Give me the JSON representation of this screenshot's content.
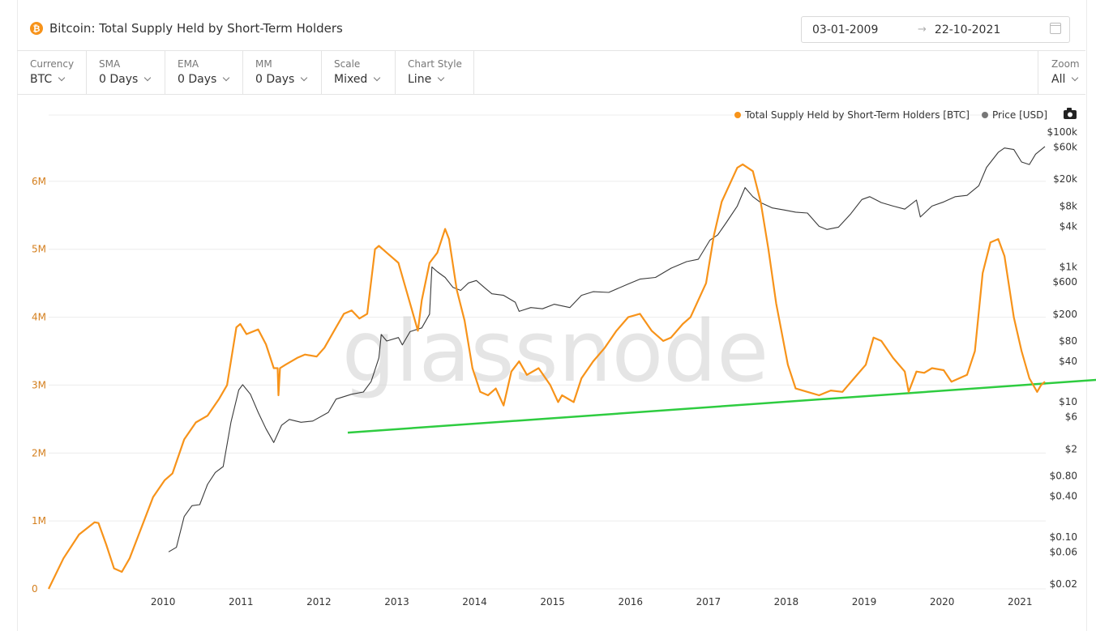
{
  "header": {
    "coin_symbol": "₿",
    "title": "Bitcoin: Total Supply Held by Short-Term Holders",
    "date_from": "03-01-2009",
    "date_arrow": "→",
    "date_to": "22-10-2021"
  },
  "toolbar": [
    {
      "label": "Currency",
      "value": "BTC"
    },
    {
      "label": "SMA",
      "value": "0 Days"
    },
    {
      "label": "EMA",
      "value": "0 Days"
    },
    {
      "label": "MM",
      "value": "0 Days"
    },
    {
      "label": "Scale",
      "value": "Mixed"
    },
    {
      "label": "Chart Style",
      "value": "Line"
    }
  ],
  "zoom": {
    "label": "Zoom",
    "value": "All"
  },
  "colors": {
    "supply": "#f7931a",
    "price": "#3a3a3a",
    "trend": "#2ecc40",
    "left_axis": "#d47f1e"
  },
  "chart_data": {
    "type": "line",
    "title": "Bitcoin: Total Supply Held by Short-Term Holders",
    "watermark": "glassnode",
    "legend": [
      {
        "name": "Total Supply Held by Short-Term Holders [BTC]",
        "color": "#f7931a"
      },
      {
        "name": "Price [USD]",
        "color": "#777777"
      }
    ],
    "x_ticks": [
      "2010",
      "2011",
      "2012",
      "2013",
      "2014",
      "2015",
      "2016",
      "2017",
      "2018",
      "2019",
      "2020",
      "2021"
    ],
    "x_tick_values": [
      2010,
      2011,
      2012,
      2013,
      2014,
      2015,
      2016,
      2017,
      2018,
      2019,
      2020,
      2021
    ],
    "xlim": [
      2009.01,
      2021.81
    ],
    "y_left": {
      "ticks": [
        "0",
        "1M",
        "2M",
        "3M",
        "4M",
        "5M",
        "6M"
      ],
      "tick_values": [
        0,
        1000000,
        2000000,
        3000000,
        4000000,
        5000000,
        6000000
      ],
      "ylim": [
        0,
        7000000
      ]
    },
    "y_right": {
      "scale": "log",
      "ticks": [
        "$0.02",
        "$0.06",
        "$0.10",
        "$0.40",
        "$0.80",
        "$2",
        "$6",
        "$10",
        "$40",
        "$80",
        "$200",
        "$600",
        "$1k",
        "$4k",
        "$8k",
        "$20k",
        "$60k",
        "$100k"
      ],
      "tick_values": [
        0.02,
        0.06,
        0.1,
        0.4,
        0.8,
        2,
        6,
        10,
        40,
        80,
        200,
        600,
        1000,
        4000,
        8000,
        20000,
        60000,
        100000
      ],
      "ylim": [
        0.02,
        100000
      ]
    },
    "series": [
      {
        "name": "Total Supply Held by Short-Term Holders [BTC]",
        "axis": "left",
        "x": [
          2009.01,
          2009.2,
          2009.4,
          2009.6,
          2009.65,
          2009.75,
          2009.85,
          2009.95,
          2010.05,
          2010.2,
          2010.35,
          2010.5,
          2010.6,
          2010.75,
          2010.9,
          2011.05,
          2011.2,
          2011.3,
          2011.42,
          2011.47,
          2011.55,
          2011.7,
          2011.8,
          2011.9,
          2011.95,
          2011.96,
          2011.98,
          2012.05,
          2012.2,
          2012.3,
          2012.45,
          2012.55,
          2012.7,
          2012.8,
          2012.9,
          2013.0,
          2013.1,
          2013.2,
          2013.25,
          2013.35,
          2013.5,
          2013.6,
          2013.75,
          2013.8,
          2013.9,
          2014.0,
          2014.1,
          2014.15,
          2014.25,
          2014.35,
          2014.45,
          2014.55,
          2014.65,
          2014.75,
          2014.85,
          2014.95,
          2015.05,
          2015.15,
          2015.3,
          2015.45,
          2015.55,
          2015.6,
          2015.75,
          2015.85,
          2016.0,
          2016.15,
          2016.3,
          2016.45,
          2016.6,
          2016.75,
          2016.9,
          2017.0,
          2017.15,
          2017.25,
          2017.35,
          2017.45,
          2017.55,
          2017.65,
          2017.75,
          2017.85,
          2017.92,
          2018.05,
          2018.15,
          2018.25,
          2018.35,
          2018.5,
          2018.6,
          2018.75,
          2018.9,
          2019.05,
          2019.2,
          2019.35,
          2019.5,
          2019.6,
          2019.7,
          2019.85,
          2020.0,
          2020.05,
          2020.15,
          2020.25,
          2020.35,
          2020.5,
          2020.6,
          2020.7,
          2020.8,
          2020.9,
          2021.0,
          2021.1,
          2021.2,
          2021.28,
          2021.4,
          2021.5,
          2021.6,
          2021.7,
          2021.75,
          2021.8
        ],
        "y": [
          0,
          450000,
          800000,
          980000,
          970000,
          650000,
          300000,
          250000,
          450000,
          900000,
          1350000,
          1600000,
          1700000,
          2200000,
          2450000,
          2550000,
          2800000,
          3000000,
          3850000,
          3900000,
          3750000,
          3820000,
          3600000,
          3250000,
          3250000,
          2850000,
          3250000,
          3300000,
          3400000,
          3450000,
          3420000,
          3550000,
          3850000,
          4050000,
          4100000,
          3980000,
          4050000,
          5000000,
          5050000,
          4950000,
          4800000,
          4400000,
          3800000,
          4250000,
          4800000,
          4950000,
          5300000,
          5150000,
          4400000,
          3950000,
          3250000,
          2900000,
          2850000,
          2950000,
          2700000,
          3200000,
          3350000,
          3150000,
          3250000,
          3000000,
          2750000,
          2850000,
          2750000,
          3100000,
          3350000,
          3550000,
          3800000,
          4000000,
          4050000,
          3800000,
          3650000,
          3700000,
          3900000,
          4000000,
          4250000,
          4500000,
          5200000,
          5700000,
          5950000,
          6200000,
          6250000,
          6150000,
          5700000,
          5000000,
          4200000,
          3300000,
          2950000,
          2900000,
          2850000,
          2920000,
          2900000,
          3100000,
          3300000,
          3700000,
          3650000,
          3400000,
          3200000,
          2900000,
          3200000,
          3180000,
          3250000,
          3220000,
          3050000,
          3100000,
          3150000,
          3500000,
          4650000,
          5100000,
          5150000,
          4900000,
          4000000,
          3500000,
          3100000,
          2900000,
          3000000,
          3050000
        ]
      },
      {
        "name": "Price [USD]",
        "axis": "right",
        "x": [
          2010.55,
          2010.65,
          2010.75,
          2010.85,
          2010.95,
          2011.05,
          2011.15,
          2011.25,
          2011.35,
          2011.45,
          2011.5,
          2011.6,
          2011.7,
          2011.8,
          2011.9,
          2012.0,
          2012.1,
          2012.25,
          2012.4,
          2012.6,
          2012.7,
          2012.9,
          2013.05,
          2013.15,
          2013.25,
          2013.28,
          2013.35,
          2013.5,
          2013.55,
          2013.65,
          2013.8,
          2013.9,
          2013.93,
          2014.0,
          2014.1,
          2014.2,
          2014.3,
          2014.4,
          2014.5,
          2014.6,
          2014.7,
          2014.85,
          2015.0,
          2015.05,
          2015.2,
          2015.35,
          2015.5,
          2015.7,
          2015.85,
          2016.0,
          2016.2,
          2016.45,
          2016.6,
          2016.8,
          2017.0,
          2017.2,
          2017.35,
          2017.5,
          2017.6,
          2017.7,
          2017.85,
          2017.95,
          2018.05,
          2018.15,
          2018.3,
          2018.45,
          2018.6,
          2018.75,
          2018.9,
          2019.0,
          2019.15,
          2019.3,
          2019.45,
          2019.55,
          2019.7,
          2019.85,
          2020.0,
          2020.15,
          2020.2,
          2020.35,
          2020.5,
          2020.65,
          2020.8,
          2020.95,
          2021.05,
          2021.2,
          2021.28,
          2021.4,
          2021.5,
          2021.6,
          2021.68,
          2021.8
        ],
        "y": [
          0.06,
          0.07,
          0.2,
          0.29,
          0.3,
          0.6,
          0.9,
          1.1,
          5,
          15,
          18,
          13,
          7,
          4,
          2.5,
          4.5,
          5.5,
          5,
          5.2,
          7,
          11,
          13,
          14,
          20,
          45,
          100,
          80,
          90,
          70,
          110,
          125,
          200,
          1000,
          850,
          700,
          500,
          450,
          580,
          630,
          500,
          400,
          380,
          300,
          220,
          250,
          240,
          280,
          250,
          380,
          430,
          420,
          560,
          660,
          700,
          960,
          1200,
          1300,
          2500,
          3000,
          4400,
          8000,
          15000,
          11000,
          9000,
          7500,
          7000,
          6500,
          6300,
          4000,
          3600,
          3900,
          6000,
          10000,
          11000,
          9000,
          8000,
          7200,
          9800,
          5500,
          8000,
          9200,
          11000,
          11500,
          16000,
          30000,
          50000,
          58000,
          55000,
          36000,
          33000,
          47000,
          61000
        ]
      }
    ],
    "annotations": [
      {
        "type": "trendline",
        "color": "#2ecc40",
        "x": [
          2012.85,
          2022.5
        ],
        "y": [
          2300000,
          3080000
        ]
      }
    ]
  }
}
